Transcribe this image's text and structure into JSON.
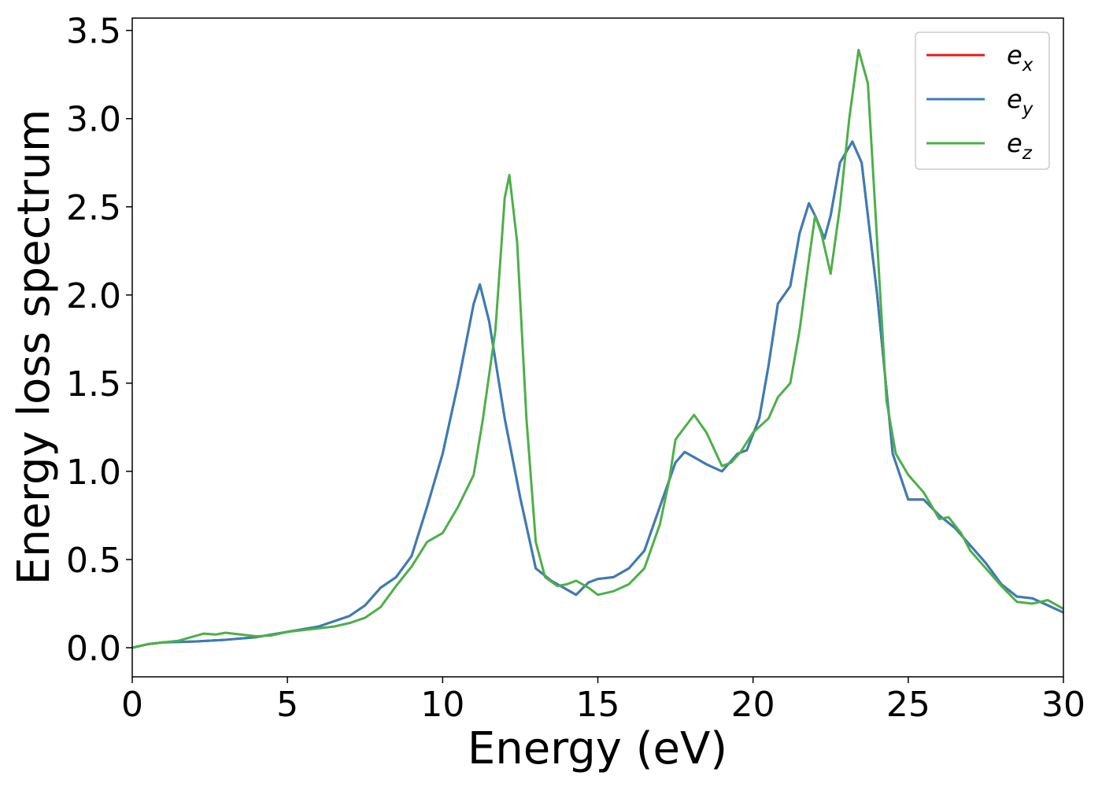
{
  "chart_data": {
    "type": "line",
    "xlabel": "Energy (eV)",
    "ylabel": "Energy loss spectrum",
    "xlim": [
      0,
      30
    ],
    "xticks": [
      0,
      5,
      10,
      15,
      20,
      25,
      30
    ],
    "ylim": [
      -0.165,
      3.57
    ],
    "yticks": [
      {
        "value": 0,
        "label": "0.0"
      },
      {
        "value": 0.5,
        "label": "0.5"
      },
      {
        "value": 1,
        "label": "1.0"
      },
      {
        "value": 1.5,
        "label": "1.5"
      },
      {
        "value": 2,
        "label": "2.0"
      },
      {
        "value": 2.5,
        "label": "2.5"
      },
      {
        "value": 3,
        "label": "3.0"
      },
      {
        "value": 3.5,
        "label": "3.5"
      }
    ],
    "legend": "upper right",
    "series": [
      {
        "name": "ex",
        "color": "#e41a1c",
        "x": [
          0,
          0.5,
          1,
          2,
          3,
          4,
          5,
          6,
          7,
          7.5,
          8,
          8.5,
          9,
          9.5,
          10,
          10.5,
          11,
          11.2,
          11.5,
          12,
          12.5,
          13,
          13.5,
          14,
          14.3,
          14.7,
          15,
          15.5,
          16,
          16.5,
          17,
          17.5,
          17.8,
          18.2,
          18.5,
          19,
          19.5,
          19.8,
          20.2,
          20.5,
          20.8,
          21.2,
          21.5,
          21.8,
          22,
          22.3,
          22.5,
          22.8,
          23.2,
          23.5,
          24,
          24.5,
          25,
          25.5,
          26,
          26.5,
          27,
          27.5,
          28,
          28.5,
          29,
          29.5,
          30
        ],
        "values": [
          0,
          0.02,
          0.03,
          0.035,
          0.045,
          0.06,
          0.09,
          0.12,
          0.18,
          0.24,
          0.34,
          0.4,
          0.52,
          0.8,
          1.1,
          1.5,
          1.95,
          2.06,
          1.85,
          1.3,
          0.85,
          0.45,
          0.38,
          0.33,
          0.3,
          0.37,
          0.39,
          0.4,
          0.45,
          0.55,
          0.8,
          1.05,
          1.11,
          1.07,
          1.04,
          1,
          1.1,
          1.12,
          1.3,
          1.6,
          1.95,
          2.05,
          2.35,
          2.52,
          2.45,
          2.32,
          2.45,
          2.75,
          2.87,
          2.75,
          2,
          1.1,
          0.84,
          0.84,
          0.75,
          0.68,
          0.58,
          0.48,
          0.36,
          0.29,
          0.28,
          0.24,
          0.2
        ]
      },
      {
        "name": "ey",
        "color": "#377eb8",
        "x": [
          0,
          0.5,
          1,
          2,
          3,
          4,
          5,
          6,
          7,
          7.5,
          8,
          8.5,
          9,
          9.5,
          10,
          10.5,
          11,
          11.2,
          11.5,
          12,
          12.5,
          13,
          13.5,
          14,
          14.3,
          14.7,
          15,
          15.5,
          16,
          16.5,
          17,
          17.5,
          17.8,
          18.2,
          18.5,
          19,
          19.5,
          19.8,
          20.2,
          20.5,
          20.8,
          21.2,
          21.5,
          21.8,
          22,
          22.3,
          22.5,
          22.8,
          23.2,
          23.5,
          24,
          24.5,
          25,
          25.5,
          26,
          26.5,
          27,
          27.5,
          28,
          28.5,
          29,
          29.5,
          30
        ],
        "values": [
          0,
          0.02,
          0.03,
          0.035,
          0.045,
          0.06,
          0.09,
          0.12,
          0.18,
          0.24,
          0.34,
          0.4,
          0.52,
          0.8,
          1.1,
          1.5,
          1.95,
          2.06,
          1.85,
          1.3,
          0.85,
          0.45,
          0.38,
          0.33,
          0.3,
          0.37,
          0.39,
          0.4,
          0.45,
          0.55,
          0.8,
          1.05,
          1.11,
          1.07,
          1.04,
          1,
          1.1,
          1.12,
          1.3,
          1.6,
          1.95,
          2.05,
          2.35,
          2.52,
          2.45,
          2.32,
          2.45,
          2.75,
          2.87,
          2.75,
          2,
          1.1,
          0.84,
          0.84,
          0.75,
          0.68,
          0.58,
          0.48,
          0.36,
          0.29,
          0.28,
          0.24,
          0.2
        ]
      },
      {
        "name": "ez",
        "color": "#4daf4a",
        "x": [
          0,
          0.5,
          1,
          1.5,
          2,
          2.3,
          2.7,
          3,
          3.5,
          4,
          4.5,
          5,
          5.5,
          6,
          6.5,
          7,
          7.5,
          8,
          8.5,
          9,
          9.5,
          10,
          10.5,
          11,
          11.3,
          11.7,
          12,
          12.15,
          12.4,
          12.7,
          13,
          13.3,
          13.7,
          14,
          14.3,
          14.7,
          15,
          15.5,
          16,
          16.5,
          17,
          17.3,
          17.5,
          17.8,
          18.1,
          18.5,
          19,
          19.3,
          19.6,
          20,
          20.5,
          20.8,
          21.2,
          21.5,
          21.8,
          22,
          22.2,
          22.5,
          22.8,
          23.1,
          23.4,
          23.7,
          24,
          24.3,
          24.6,
          25,
          25.5,
          26,
          26.3,
          26.7,
          27,
          27.5,
          28,
          28.5,
          29,
          29.5,
          30
        ],
        "values": [
          0,
          0.02,
          0.03,
          0.04,
          0.065,
          0.08,
          0.075,
          0.085,
          0.075,
          0.065,
          0.07,
          0.09,
          0.1,
          0.11,
          0.12,
          0.14,
          0.17,
          0.23,
          0.35,
          0.46,
          0.6,
          0.65,
          0.8,
          0.98,
          1.3,
          1.8,
          2.55,
          2.68,
          2.3,
          1.3,
          0.6,
          0.4,
          0.35,
          0.36,
          0.38,
          0.34,
          0.3,
          0.32,
          0.36,
          0.45,
          0.7,
          0.95,
          1.18,
          1.25,
          1.32,
          1.22,
          1.03,
          1.05,
          1.11,
          1.22,
          1.3,
          1.42,
          1.5,
          1.8,
          2.2,
          2.45,
          2.35,
          2.12,
          2.5,
          3,
          3.39,
          3.2,
          2.3,
          1.4,
          1.1,
          0.98,
          0.88,
          0.73,
          0.74,
          0.65,
          0.55,
          0.45,
          0.35,
          0.26,
          0.25,
          0.27,
          0.22
        ]
      }
    ]
  }
}
